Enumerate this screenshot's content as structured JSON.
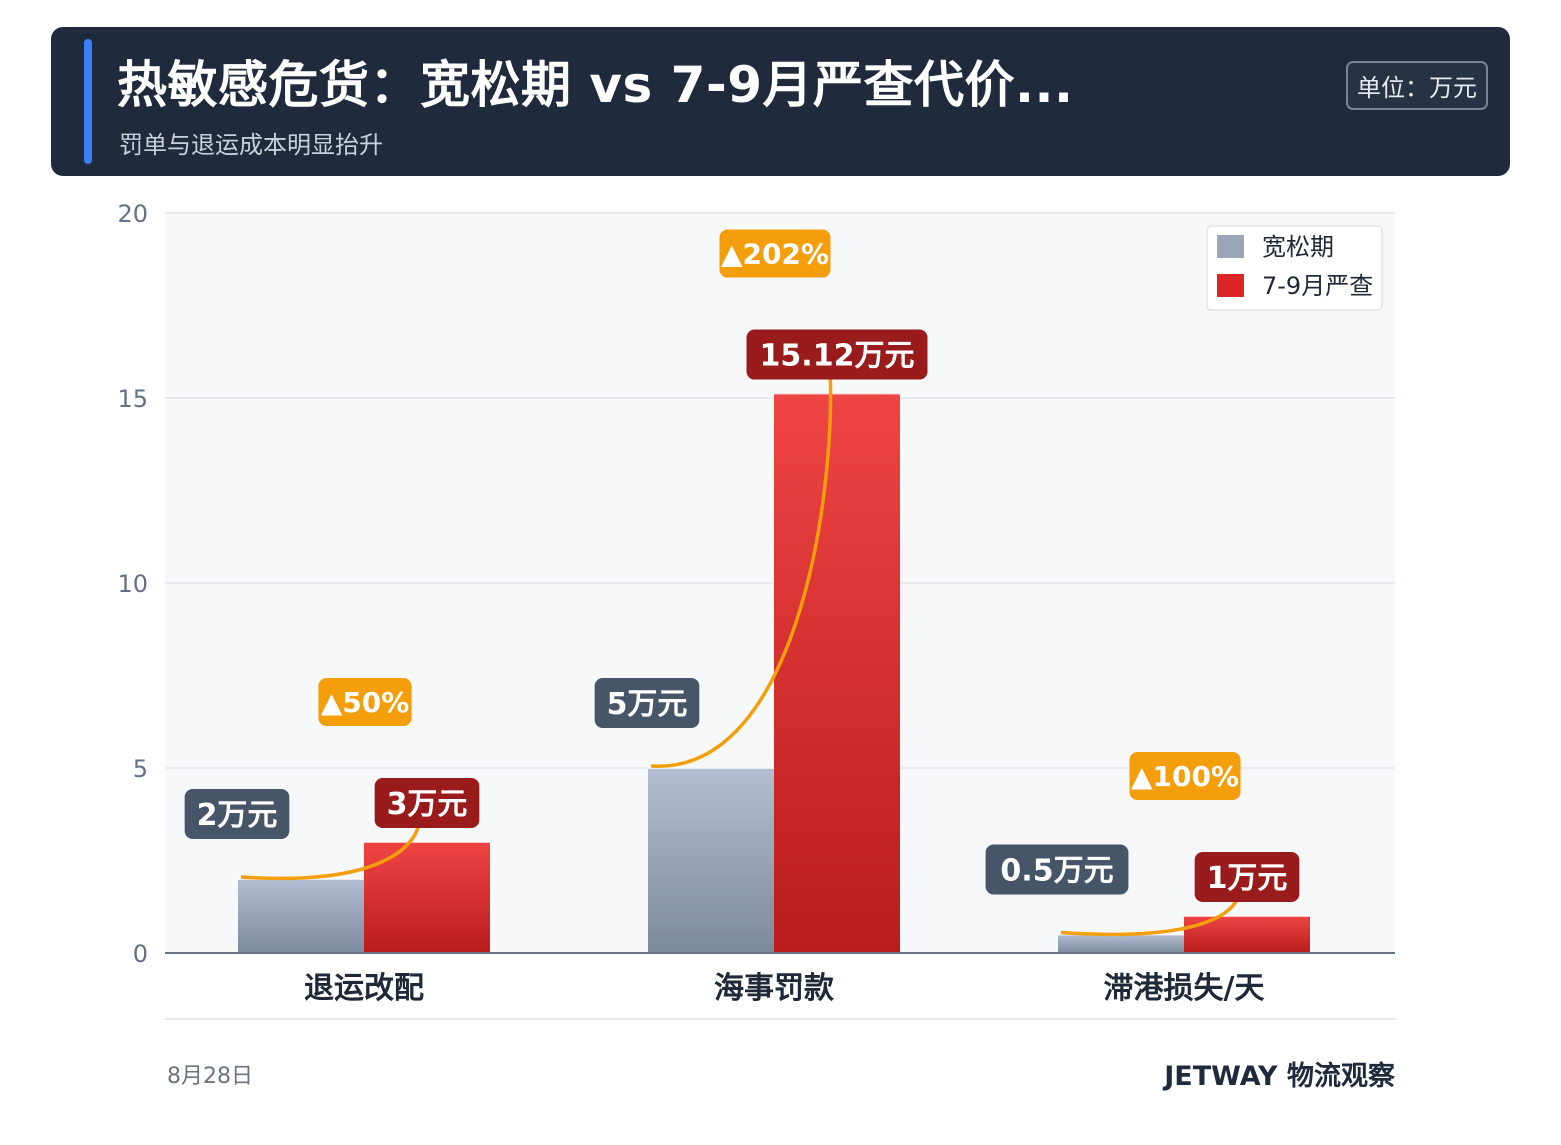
{
  "header": {
    "title": "热敏感危货：宽松期 vs 7-9月严查代价...",
    "subtitle": "罚单与退运成本明显抬升",
    "unit_badge": "单位：万元"
  },
  "footer": {
    "date": "8月28日",
    "brand": "JETWAY 物流观察"
  },
  "colors": {
    "header_bg": "#1f2a3d",
    "accent": "#3b82f6",
    "series_loose": "#9aa6b8",
    "series_strict": "#dc2626",
    "change_badge": "#f59e0b",
    "arrow": "#f59e0b"
  },
  "chart_data": {
    "type": "bar",
    "categories": [
      "退运改配",
      "海事罚款",
      "滞港损失/天"
    ],
    "series": [
      {
        "name": "宽松期",
        "values": [
          2,
          5,
          0.5
        ],
        "labels": [
          "2万元",
          "5万元",
          "0.5万元"
        ]
      },
      {
        "name": "7-9月严查",
        "values": [
          3,
          15.12,
          1
        ],
        "labels": [
          "3万元",
          "15.12万元",
          "1万元"
        ]
      }
    ],
    "changes": [
      "▲50%",
      "▲202%",
      "▲100%"
    ],
    "y_ticks": [
      "0",
      "5",
      "10",
      "15",
      "20"
    ],
    "ylim": [
      0,
      20
    ],
    "grid": true,
    "legend": "top-right"
  }
}
